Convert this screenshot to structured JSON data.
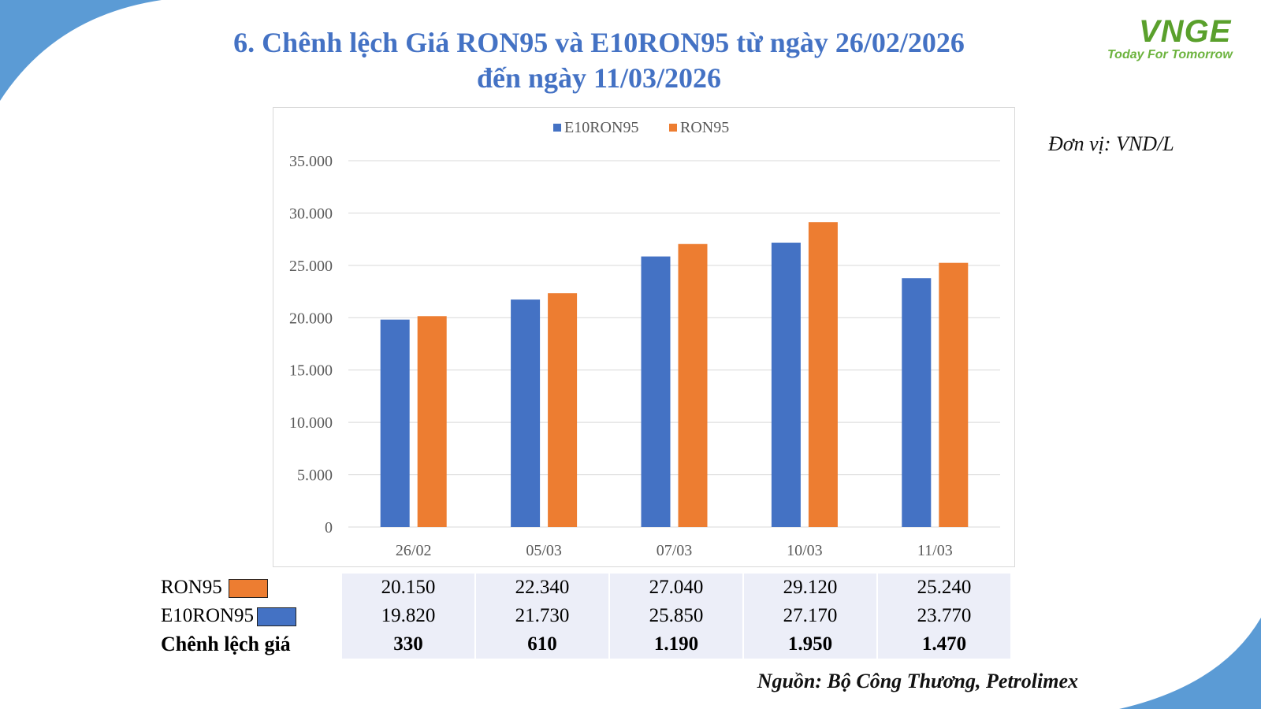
{
  "title_line1": "6. Chênh lệch Giá RON95 và E10RON95 từ ngày 26/02/2026",
  "title_line2": "đến ngày 11/03/2026",
  "logo": {
    "mark": "VNGE",
    "tagline": "Today For Tomorrow"
  },
  "unit": "Đơn vị: VND/L",
  "source": "Nguồn: Bộ Công Thương, Petrolimex",
  "colors": {
    "e10": "#4472c4",
    "ron": "#ed7d31",
    "title": "#4472c4",
    "deco": "#5b9bd5"
  },
  "chart_data": {
    "type": "bar",
    "categories": [
      "26/02",
      "05/03",
      "07/03",
      "10/03",
      "11/03"
    ],
    "series": [
      {
        "name": "E10RON95",
        "values": [
          19820,
          21730,
          25850,
          27170,
          23770
        ]
      },
      {
        "name": "RON95",
        "values": [
          20150,
          22340,
          27040,
          29120,
          25240
        ]
      }
    ],
    "ylim": [
      0,
      35000
    ],
    "yticks": [
      "0",
      "5.000",
      "10.000",
      "15.000",
      "20.000",
      "25.000",
      "30.000",
      "35.000"
    ],
    "grid": true,
    "legend": "top"
  },
  "table": {
    "rows": [
      {
        "label": "RON95",
        "values": [
          "20.150",
          "22.340",
          "27.040",
          "29.120",
          "25.240"
        ]
      },
      {
        "label": "E10RON95",
        "values": [
          "19.820",
          "21.730",
          "25.850",
          "27.170",
          "23.770"
        ]
      },
      {
        "label": "Chênh lệch giá",
        "values": [
          "330",
          "610",
          "1.190",
          "1.950",
          "1.470"
        ]
      }
    ]
  }
}
